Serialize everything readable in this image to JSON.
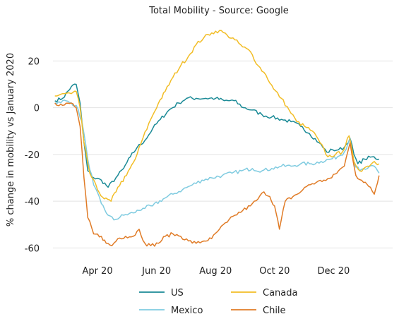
{
  "chart_data": {
    "type": "line",
    "title": "Total Mobility - Source: Google",
    "xlabel": "",
    "ylabel": "% change in mobility vs January 2020",
    "x_ticks": [
      "Apr 20",
      "Jun 20",
      "Aug 20",
      "Oct 20",
      "Dec 20"
    ],
    "x_tick_dates": [
      "2020-04-01",
      "2020-06-01",
      "2020-08-01",
      "2020-10-01",
      "2020-12-01"
    ],
    "xlim": [
      "2020-02-15",
      "2021-01-31"
    ],
    "y_ticks": [
      -60,
      -40,
      -20,
      0,
      20
    ],
    "ylim": [
      -65,
      37
    ],
    "grid": "horizontal",
    "legend_position": "bottom",
    "series": [
      {
        "name": "US",
        "color": "#1a8a96",
        "points": [
          [
            "2020-02-17",
            3
          ],
          [
            "2020-02-25",
            4
          ],
          [
            "2020-03-05",
            9
          ],
          [
            "2020-03-10",
            10
          ],
          [
            "2020-03-14",
            2
          ],
          [
            "2020-03-18",
            -15
          ],
          [
            "2020-03-22",
            -27
          ],
          [
            "2020-03-28",
            -30
          ],
          [
            "2020-04-05",
            -31
          ],
          [
            "2020-04-12",
            -34
          ],
          [
            "2020-04-20",
            -30
          ],
          [
            "2020-04-28",
            -26
          ],
          [
            "2020-05-05",
            -21
          ],
          [
            "2020-05-12",
            -17
          ],
          [
            "2020-05-20",
            -14
          ],
          [
            "2020-05-28",
            -9
          ],
          [
            "2020-06-05",
            -5
          ],
          [
            "2020-06-14",
            -1
          ],
          [
            "2020-06-24",
            2
          ],
          [
            "2020-07-02",
            4
          ],
          [
            "2020-07-12",
            4
          ],
          [
            "2020-07-22",
            4
          ],
          [
            "2020-08-01",
            4
          ],
          [
            "2020-08-10",
            3
          ],
          [
            "2020-08-20",
            3
          ],
          [
            "2020-08-30",
            0
          ],
          [
            "2020-09-08",
            -1
          ],
          [
            "2020-09-18",
            -3
          ],
          [
            "2020-09-28",
            -4
          ],
          [
            "2020-10-08",
            -5
          ],
          [
            "2020-10-18",
            -6
          ],
          [
            "2020-10-28",
            -8
          ],
          [
            "2020-11-06",
            -11
          ],
          [
            "2020-11-16",
            -15
          ],
          [
            "2020-11-24",
            -19
          ],
          [
            "2020-11-30",
            -18
          ],
          [
            "2020-12-06",
            -18
          ],
          [
            "2020-12-12",
            -17
          ],
          [
            "2020-12-18",
            -13
          ],
          [
            "2020-12-22",
            -20
          ],
          [
            "2020-12-26",
            -24
          ],
          [
            "2021-01-02",
            -22
          ],
          [
            "2021-01-10",
            -21
          ],
          [
            "2021-01-17",
            -22
          ]
        ]
      },
      {
        "name": "Mexico",
        "color": "#7fcbe0",
        "points": [
          [
            "2020-02-17",
            2
          ],
          [
            "2020-02-25",
            3
          ],
          [
            "2020-03-05",
            2
          ],
          [
            "2020-03-10",
            1
          ],
          [
            "2020-03-16",
            -6
          ],
          [
            "2020-03-22",
            -22
          ],
          [
            "2020-03-28",
            -33
          ],
          [
            "2020-04-05",
            -41
          ],
          [
            "2020-04-12",
            -46
          ],
          [
            "2020-04-18",
            -48
          ],
          [
            "2020-04-28",
            -46
          ],
          [
            "2020-05-08",
            -45
          ],
          [
            "2020-05-18",
            -43
          ],
          [
            "2020-05-28",
            -42
          ],
          [
            "2020-06-08",
            -39
          ],
          [
            "2020-06-18",
            -37
          ],
          [
            "2020-06-28",
            -35
          ],
          [
            "2020-07-08",
            -33
          ],
          [
            "2020-07-18",
            -31
          ],
          [
            "2020-07-28",
            -30
          ],
          [
            "2020-08-08",
            -29
          ],
          [
            "2020-08-18",
            -28
          ],
          [
            "2020-08-28",
            -27
          ],
          [
            "2020-09-08",
            -26
          ],
          [
            "2020-09-18",
            -27
          ],
          [
            "2020-09-28",
            -26
          ],
          [
            "2020-10-08",
            -25
          ],
          [
            "2020-10-18",
            -25
          ],
          [
            "2020-10-28",
            -24
          ],
          [
            "2020-11-08",
            -24
          ],
          [
            "2020-11-18",
            -23
          ],
          [
            "2020-11-28",
            -22
          ],
          [
            "2020-12-05",
            -21
          ],
          [
            "2020-12-12",
            -19
          ],
          [
            "2020-12-18",
            -13
          ],
          [
            "2020-12-22",
            -24
          ],
          [
            "2020-12-28",
            -27
          ],
          [
            "2021-01-05",
            -26
          ],
          [
            "2021-01-12",
            -25
          ],
          [
            "2021-01-17",
            -28
          ]
        ]
      },
      {
        "name": "Canada",
        "color": "#f2bd26",
        "points": [
          [
            "2020-02-17",
            5
          ],
          [
            "2020-02-25",
            6
          ],
          [
            "2020-03-05",
            6
          ],
          [
            "2020-03-10",
            7
          ],
          [
            "2020-03-14",
            0
          ],
          [
            "2020-03-18",
            -15
          ],
          [
            "2020-03-24",
            -28
          ],
          [
            "2020-04-01",
            -35
          ],
          [
            "2020-04-08",
            -39
          ],
          [
            "2020-04-15",
            -40
          ],
          [
            "2020-04-22",
            -34
          ],
          [
            "2020-05-01",
            -29
          ],
          [
            "2020-05-10",
            -22
          ],
          [
            "2020-05-18",
            -13
          ],
          [
            "2020-05-26",
            -5
          ],
          [
            "2020-06-03",
            2
          ],
          [
            "2020-06-10",
            7
          ],
          [
            "2020-06-18",
            13
          ],
          [
            "2020-06-26",
            18
          ],
          [
            "2020-07-04",
            22
          ],
          [
            "2020-07-12",
            27
          ],
          [
            "2020-07-20",
            30
          ],
          [
            "2020-07-28",
            32
          ],
          [
            "2020-08-05",
            33
          ],
          [
            "2020-08-13",
            31
          ],
          [
            "2020-08-21",
            29
          ],
          [
            "2020-08-29",
            26
          ],
          [
            "2020-09-06",
            24
          ],
          [
            "2020-09-14",
            18
          ],
          [
            "2020-09-22",
            14
          ],
          [
            "2020-09-30",
            8
          ],
          [
            "2020-10-08",
            4
          ],
          [
            "2020-10-16",
            -1
          ],
          [
            "2020-10-24",
            -6
          ],
          [
            "2020-11-01",
            -8
          ],
          [
            "2020-11-09",
            -10
          ],
          [
            "2020-11-17",
            -15
          ],
          [
            "2020-11-25",
            -21
          ],
          [
            "2020-12-03",
            -20
          ],
          [
            "2020-12-10",
            -19
          ],
          [
            "2020-12-17",
            -12
          ],
          [
            "2020-12-22",
            -23
          ],
          [
            "2020-12-28",
            -27
          ],
          [
            "2021-01-05",
            -25
          ],
          [
            "2021-01-12",
            -23
          ],
          [
            "2021-01-17",
            -24
          ]
        ]
      },
      {
        "name": "Chile",
        "color": "#e07b26",
        "points": [
          [
            "2020-02-17",
            2
          ],
          [
            "2020-02-25",
            1
          ],
          [
            "2020-03-05",
            2
          ],
          [
            "2020-03-10",
            0
          ],
          [
            "2020-03-14",
            -8
          ],
          [
            "2020-03-18",
            -30
          ],
          [
            "2020-03-22",
            -47
          ],
          [
            "2020-03-28",
            -54
          ],
          [
            "2020-04-05",
            -55
          ],
          [
            "2020-04-10",
            -58
          ],
          [
            "2020-04-16",
            -59
          ],
          [
            "2020-04-22",
            -56
          ],
          [
            "2020-04-30",
            -55
          ],
          [
            "2020-05-08",
            -55
          ],
          [
            "2020-05-14",
            -52
          ],
          [
            "2020-05-20",
            -58
          ],
          [
            "2020-05-26",
            -59
          ],
          [
            "2020-06-03",
            -58
          ],
          [
            "2020-06-10",
            -55
          ],
          [
            "2020-06-18",
            -54
          ],
          [
            "2020-06-26",
            -55
          ],
          [
            "2020-07-04",
            -57
          ],
          [
            "2020-07-12",
            -58
          ],
          [
            "2020-07-20",
            -57
          ],
          [
            "2020-07-28",
            -56
          ],
          [
            "2020-08-05",
            -52
          ],
          [
            "2020-08-13",
            -49
          ],
          [
            "2020-08-21",
            -46
          ],
          [
            "2020-08-29",
            -44
          ],
          [
            "2020-09-06",
            -42
          ],
          [
            "2020-09-14",
            -39
          ],
          [
            "2020-09-20",
            -36
          ],
          [
            "2020-09-26",
            -38
          ],
          [
            "2020-10-01",
            -42
          ],
          [
            "2020-10-06",
            -52
          ],
          [
            "2020-10-12",
            -40
          ],
          [
            "2020-10-20",
            -38
          ],
          [
            "2020-10-28",
            -36
          ],
          [
            "2020-11-05",
            -33
          ],
          [
            "2020-11-13",
            -32
          ],
          [
            "2020-11-21",
            -31
          ],
          [
            "2020-11-29",
            -30
          ],
          [
            "2020-12-06",
            -27
          ],
          [
            "2020-12-12",
            -25
          ],
          [
            "2020-12-18",
            -15
          ],
          [
            "2020-12-24",
            -29
          ],
          [
            "2021-01-01",
            -32
          ],
          [
            "2021-01-08",
            -34
          ],
          [
            "2021-01-12",
            -37
          ],
          [
            "2021-01-17",
            -29
          ]
        ]
      }
    ]
  }
}
